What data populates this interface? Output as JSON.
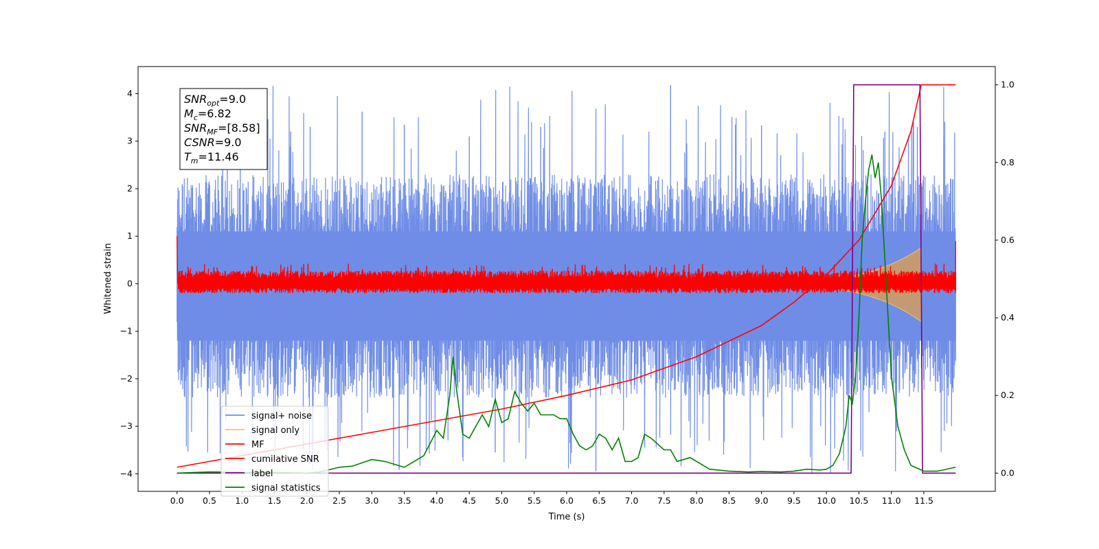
{
  "chart_data": {
    "type": "line",
    "xlabel": "Time (s)",
    "ylabel": "Whitened strain",
    "xlim": [
      -0.6,
      12.6
    ],
    "ylim": [
      -4.37,
      4.57
    ],
    "y2lim": [
      -0.047,
      1.047
    ],
    "x_ticks": [
      "0.0",
      "0.5",
      "1.0",
      "1.5",
      "2.0",
      "2.5",
      "3.0",
      "3.5",
      "4.0",
      "4.5",
      "5.0",
      "5.5",
      "6.0",
      "6.5",
      "7.0",
      "7.5",
      "8.0",
      "8.5",
      "9.0",
      "9.5",
      "10.0",
      "10.5",
      "11.0",
      "11.5"
    ],
    "y_ticks": [
      "4",
      "3",
      "2",
      "1",
      "0",
      "−1",
      "−2",
      "−3",
      "−4"
    ],
    "y2_ticks": [
      "1.0",
      "0.8",
      "0.6",
      "0.4",
      "0.2",
      "0.0"
    ],
    "annotation": {
      "lines": [
        {
          "base": "SNR",
          "sub": "opt",
          "rest": "=9.0"
        },
        {
          "base": "M",
          "sub": "c",
          "rest": "=6.82"
        },
        {
          "base": "SNR",
          "sub": "MF",
          "rest": "=[8.58]"
        },
        {
          "base": "CSNR",
          "sub": "",
          "rest": "=9.0"
        },
        {
          "base": "T",
          "sub": "m",
          "rest": "=11.46"
        }
      ]
    },
    "legend_position": "lower-left",
    "series": [
      {
        "name": "signal+ noise",
        "color": "#6f8de6",
        "axis": "left",
        "kind": "noise band",
        "x_range": [
          0.0,
          11.99
        ],
        "upper_mean": 1.5,
        "lower_mean": -1.6,
        "peak_max": 4.18,
        "trough_min": -3.95
      },
      {
        "name": "signal only",
        "color": "#f5c26b",
        "axis": "left",
        "kind": "chirp",
        "x_range": [
          0.0,
          11.46
        ],
        "amplitude_end": 0.7
      },
      {
        "name": "MF",
        "color": "#ff0000",
        "axis": "left",
        "kind": "noise band",
        "x_range": [
          0.0,
          11.99
        ],
        "upper_mean": 0.18,
        "lower_mean": -0.13,
        "start_value": 1.0
      },
      {
        "name": "cumilative SNR",
        "color": "#ff0000",
        "axis": "right",
        "points": [
          [
            0.0,
            0.015
          ],
          [
            1.0,
            0.045
          ],
          [
            2.0,
            0.075
          ],
          [
            3.0,
            0.105
          ],
          [
            4.0,
            0.135
          ],
          [
            5.0,
            0.165
          ],
          [
            6.0,
            0.2
          ],
          [
            7.0,
            0.24
          ],
          [
            8.0,
            0.3
          ],
          [
            9.0,
            0.38
          ],
          [
            9.5,
            0.44
          ],
          [
            10.0,
            0.51
          ],
          [
            10.5,
            0.6
          ],
          [
            11.0,
            0.74
          ],
          [
            11.3,
            0.88
          ],
          [
            11.46,
            1.0
          ],
          [
            11.99,
            1.0
          ]
        ]
      },
      {
        "name": "label",
        "color": "#800080",
        "axis": "right",
        "points": [
          [
            0.0,
            0.0
          ],
          [
            10.38,
            0.0
          ],
          [
            10.42,
            1.0
          ],
          [
            11.44,
            1.0
          ],
          [
            11.48,
            0.0
          ],
          [
            11.99,
            0.0
          ]
        ]
      },
      {
        "name": "signal statistics",
        "color": "#008000",
        "axis": "right",
        "points": [
          [
            0.0,
            0.0
          ],
          [
            0.5,
            0.003
          ],
          [
            1.0,
            0.002
          ],
          [
            1.5,
            0.002
          ],
          [
            2.0,
            0.0
          ],
          [
            2.2,
            0.003
          ],
          [
            2.5,
            0.015
          ],
          [
            2.7,
            0.018
          ],
          [
            3.0,
            0.035
          ],
          [
            3.2,
            0.03
          ],
          [
            3.5,
            0.015
          ],
          [
            3.6,
            0.025
          ],
          [
            3.8,
            0.045
          ],
          [
            4.0,
            0.11
          ],
          [
            4.1,
            0.09
          ],
          [
            4.2,
            0.2
          ],
          [
            4.25,
            0.3
          ],
          [
            4.3,
            0.22
          ],
          [
            4.4,
            0.1
          ],
          [
            4.5,
            0.09
          ],
          [
            4.6,
            0.12
          ],
          [
            4.7,
            0.15
          ],
          [
            4.8,
            0.12
          ],
          [
            4.9,
            0.19
          ],
          [
            5.0,
            0.13
          ],
          [
            5.1,
            0.14
          ],
          [
            5.2,
            0.21
          ],
          [
            5.3,
            0.18
          ],
          [
            5.4,
            0.16
          ],
          [
            5.5,
            0.18
          ],
          [
            5.6,
            0.15
          ],
          [
            5.8,
            0.15
          ],
          [
            5.9,
            0.14
          ],
          [
            6.0,
            0.14
          ],
          [
            6.1,
            0.1
          ],
          [
            6.2,
            0.07
          ],
          [
            6.3,
            0.06
          ],
          [
            6.4,
            0.07
          ],
          [
            6.5,
            0.1
          ],
          [
            6.6,
            0.09
          ],
          [
            6.7,
            0.06
          ],
          [
            6.8,
            0.09
          ],
          [
            6.9,
            0.03
          ],
          [
            7.0,
            0.03
          ],
          [
            7.1,
            0.04
          ],
          [
            7.2,
            0.1
          ],
          [
            7.3,
            0.09
          ],
          [
            7.5,
            0.06
          ],
          [
            7.6,
            0.06
          ],
          [
            7.7,
            0.03
          ],
          [
            7.9,
            0.04
          ],
          [
            8.0,
            0.03
          ],
          [
            8.2,
            0.01
          ],
          [
            8.5,
            0.005
          ],
          [
            8.8,
            0.003
          ],
          [
            9.0,
            0.004
          ],
          [
            9.3,
            0.003
          ],
          [
            9.5,
            0.005
          ],
          [
            9.7,
            0.01
          ],
          [
            9.9,
            0.008
          ],
          [
            10.0,
            0.01
          ],
          [
            10.1,
            0.02
          ],
          [
            10.2,
            0.05
          ],
          [
            10.3,
            0.12
          ],
          [
            10.35,
            0.2
          ],
          [
            10.4,
            0.18
          ],
          [
            10.45,
            0.25
          ],
          [
            10.5,
            0.4
          ],
          [
            10.55,
            0.6
          ],
          [
            10.6,
            0.7
          ],
          [
            10.65,
            0.78
          ],
          [
            10.7,
            0.82
          ],
          [
            10.75,
            0.76
          ],
          [
            10.8,
            0.8
          ],
          [
            10.85,
            0.7
          ],
          [
            10.9,
            0.55
          ],
          [
            10.95,
            0.4
          ],
          [
            11.0,
            0.25
          ],
          [
            11.1,
            0.12
          ],
          [
            11.2,
            0.06
          ],
          [
            11.3,
            0.02
          ],
          [
            11.5,
            0.005
          ],
          [
            11.7,
            0.005
          ],
          [
            11.8,
            0.008
          ],
          [
            11.9,
            0.012
          ],
          [
            11.99,
            0.015
          ]
        ]
      }
    ]
  }
}
